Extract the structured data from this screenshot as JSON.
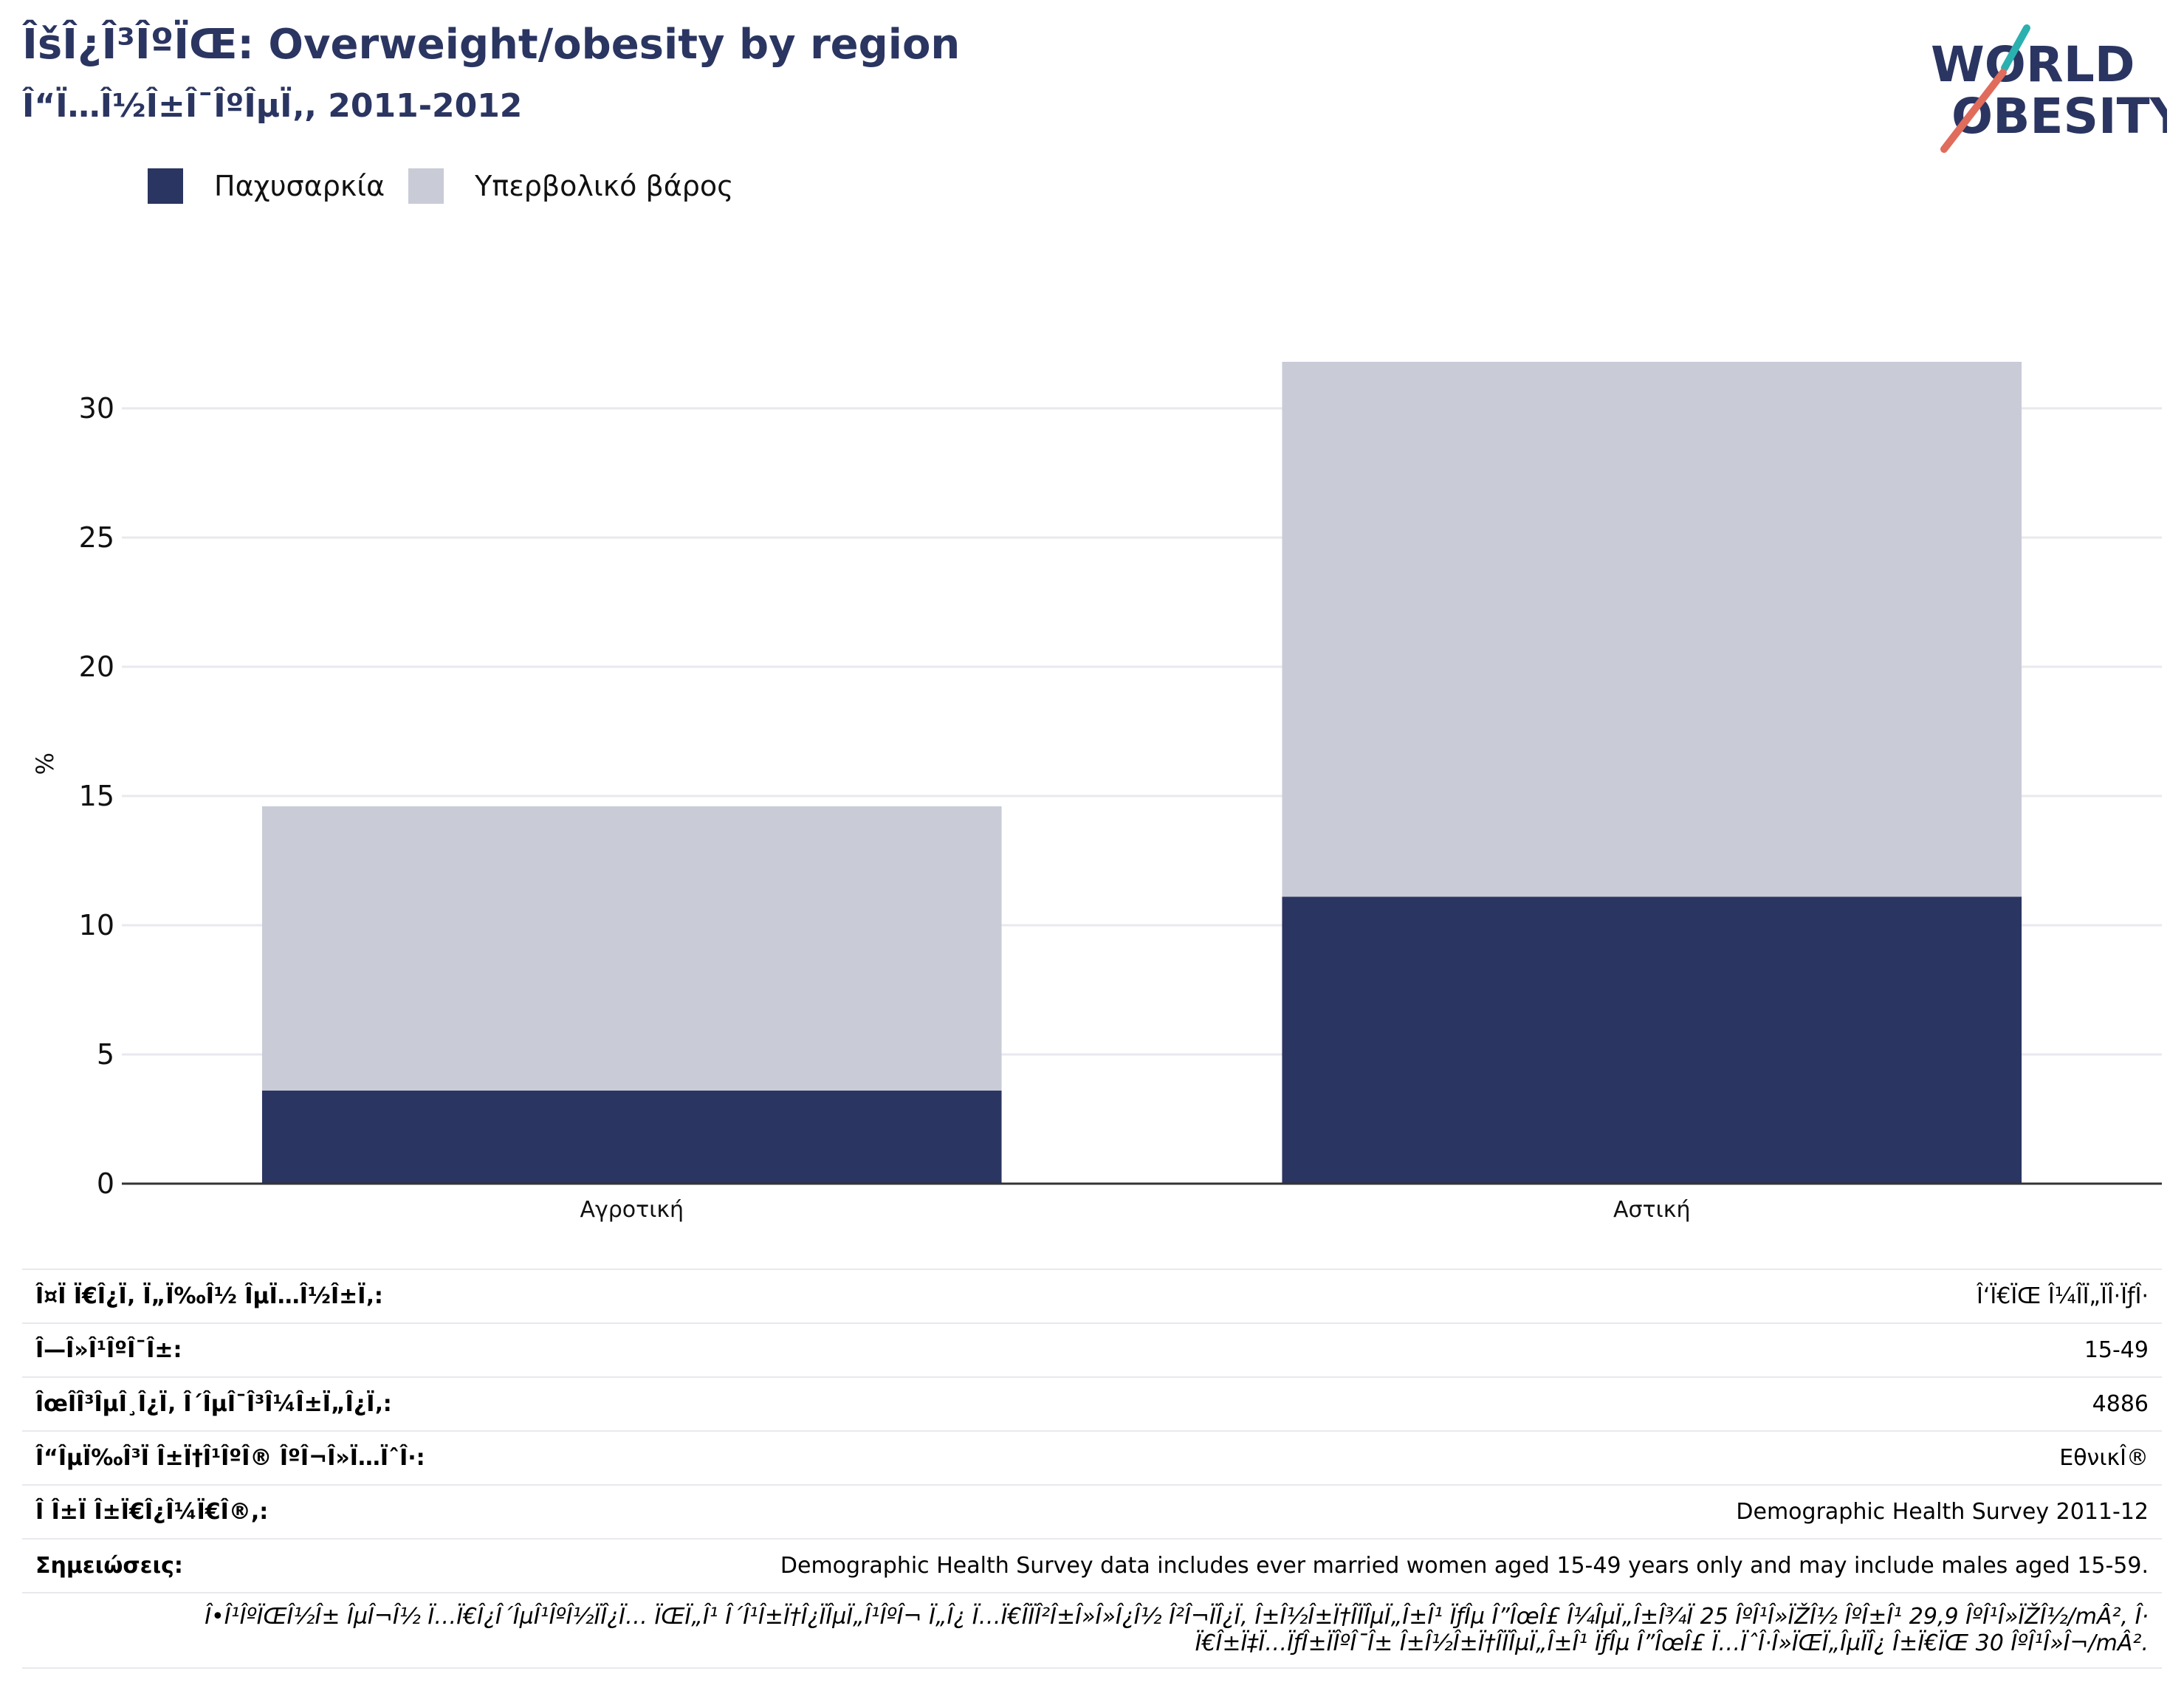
{
  "header": {
    "title": "ÎšÎ¿Î³ÎºÏŒ: Overweight/obesity by region",
    "subtitle": "Î“Ï…Î½Î±Î¯ÎºÎµÏ‚, 2011-2012"
  },
  "logo": {
    "line1": "WORLD",
    "line2": "OBESITY"
  },
  "colors": {
    "obesity": "#2a3561",
    "overweight": "#c9cbd7",
    "title": "#2a3561",
    "logo_accent_teal": "#2bb0b0",
    "logo_accent_coral": "#e06c5c"
  },
  "chart_data": {
    "type": "bar",
    "stacked": true,
    "categories": [
      "Αγροτική",
      "Αστική"
    ],
    "series": [
      {
        "name": "Παχυσαρκία",
        "values": [
          3.6,
          11.1
        ]
      },
      {
        "name": "Υπερβολικό βάρος",
        "values": [
          11.0,
          20.7
        ]
      }
    ],
    "ylabel": "%",
    "xlabel": "",
    "ylim": [
      0,
      32.5
    ],
    "yticks": [
      0,
      5,
      10,
      15,
      20,
      25,
      30
    ],
    "grid": true,
    "legend": "top-left"
  },
  "info": {
    "rows": [
      {
        "label": "Î¤Ï Ï€Î¿Ï‚ Ï„Ï‰Î½ ÎµÏ…Î½Î±Ï‚:",
        "value": "Î‘Ï€ÏŒ Î¼Î­Ï„ÏÎ·ÏƒÎ·"
      },
      {
        "label": "Î—Î»Î¹ÎºÎ¯Î±:",
        "value": "15-49"
      },
      {
        "label": "ÎœÎ­Î³ÎµÎ¸Î¿Ï‚ Î´ÎµÎ¯Î³Î¼Î±Ï„Î¿Ï‚:",
        "value": "4886"
      },
      {
        "label": "Î“ÎµÏ‰Î³Ï Î±Ï†Î¹ÎºÎ® ÎºÎ¬Î»Ï…ÏˆÎ·:",
        "value": "ΕθνικÎ®"
      },
      {
        "label": "Î Î±Ï Î±Ï€Î¿Î¼Ï€Î®,:",
        "value": "Demographic Health Survey 2011-12"
      },
      {
        "label": "Σημειώσεις:",
        "value": "Demographic Health Survey data includes ever married women aged 15-49 years only and may include males aged 15-59."
      }
    ],
    "footnote_line1": "Î•Î¹ÎºÏŒÎ½Î± ÎµÎ¬Î½ Ï…Ï€Î¿Î´ÎµÎ¹ÎºÎ½ÏÎ¿Ï… ÏŒÏ„Î¹ Î´Î¹Î±Ï†Î¿ÏÎµÏ„Î¹ÎºÎ¬ Ï„Î¿ Ï…Ï€Î­ÏÎ²Î±Î»Î»Î¿Î½ Î²Î¬ÏÎ¿Ï‚ Î±Î½Î±Ï†Î­ÏÎµÏ„Î±Î¹ ÏƒÎµ Î”ÎœÎ£ Î¼ÎµÏ„Î±Î¾Ï 25 ÎºÎ¹Î»ÏŽÎ½ ÎºÎ±Î¹ 29,9 ÎºÎ¹Î»ÏŽÎ½/mÂ², Î·",
    "footnote_line2": "Ï€Î±Ï‡Ï…ÏƒÎ±ÏÎºÎ¯Î± Î±Î½Î±Ï†Î­ÏÎµÏ„Î±Î¹ ÏƒÎµ Î”ÎœÎ£ Ï…ÏˆÎ·Î»ÏŒÏ„ÎµÏÎ¿ Î±Ï€ÏŒ 30 ÎºÎ¹Î»Î¬/mÂ²."
  }
}
